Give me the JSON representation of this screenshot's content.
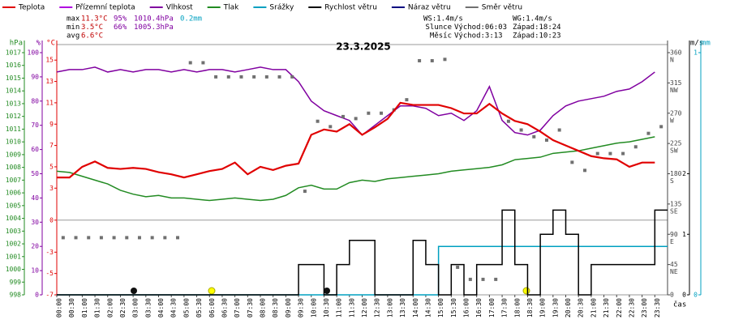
{
  "chart_data": {
    "type": "line",
    "title": "23.3.2025",
    "x_label": "čas",
    "categories": [
      "00:00",
      "00:30",
      "01:00",
      "01:30",
      "02:00",
      "02:30",
      "03:00",
      "03:30",
      "04:00",
      "04:30",
      "05:00",
      "05:30",
      "06:00",
      "06:30",
      "07:00",
      "07:30",
      "08:00",
      "08:30",
      "09:00",
      "09:30",
      "10:00",
      "10:30",
      "11:00",
      "11:30",
      "12:00",
      "12:30",
      "13:00",
      "13:30",
      "14:00",
      "14:30",
      "15:00",
      "15:30",
      "16:00",
      "16:30",
      "17:00",
      "17:30",
      "18:00",
      "18:30",
      "19:00",
      "19:30",
      "20:00",
      "20:30",
      "21:00",
      "21:30",
      "22:00",
      "22:30",
      "23:00",
      "23:30"
    ],
    "axes": {
      "hpa": {
        "label": "hPa",
        "color": "#228b22",
        "lim": [
          998,
          1017
        ],
        "ticks": [
          998,
          999,
          1000,
          1001,
          1002,
          1003,
          1004,
          1005,
          1006,
          1007,
          1008,
          1009,
          1010,
          1011,
          1012,
          1013,
          1014,
          1015,
          1016,
          1017
        ]
      },
      "hum": {
        "label": "%",
        "color": "#8000a0",
        "lim": [
          0,
          100
        ],
        "ticks": [
          0,
          10,
          20,
          30,
          40,
          50,
          60,
          70,
          80,
          90,
          100
        ]
      },
      "temp": {
        "label": "°C",
        "color": "#e00000",
        "lim": [
          -7,
          15.7
        ],
        "ticks": [
          -7,
          -5,
          -3,
          0,
          3,
          5,
          7,
          9,
          11,
          13,
          15
        ]
      },
      "dir": {
        "color": "#444444",
        "lim": [
          0,
          360
        ],
        "ticks": [
          0,
          {
            "value": 45,
            "label": "45",
            "dir": "NE"
          },
          {
            "value": 90,
            "label": "90",
            "dir": "E"
          },
          {
            "value": 135,
            "label": "135",
            "dir": "SE"
          },
          {
            "value": 180,
            "label": "180",
            "dir": "S"
          },
          {
            "value": 225,
            "label": "225",
            "dir": "SW"
          },
          {
            "value": 270,
            "label": "270",
            "dir": "W"
          },
          {
            "value": 315,
            "label": "315",
            "dir": "NW"
          },
          {
            "value": 360,
            "label": "360",
            "dir": "N"
          }
        ]
      },
      "ms": {
        "label": "m/s",
        "color": "#000000",
        "lim": [
          0,
          4
        ],
        "ticks": [
          0,
          1,
          2
        ]
      },
      "mm": {
        "label": "mm",
        "color": "#00a0c0",
        "lim": [
          0,
          1
        ],
        "ticks": [
          0,
          1
        ]
      }
    },
    "zero_line": 0,
    "series": [
      {
        "name": "Teplota",
        "color": "#e00000",
        "axis": "temp",
        "values": [
          4.0,
          4.0,
          5.0,
          5.5,
          4.9,
          4.8,
          4.9,
          4.8,
          4.5,
          4.3,
          4.0,
          4.3,
          4.6,
          4.8,
          5.4,
          4.3,
          5.0,
          4.7,
          5.1,
          5.3,
          8.0,
          8.5,
          8.3,
          9.0,
          8.0,
          8.7,
          9.5,
          11.0,
          10.8,
          10.8,
          10.8,
          10.5,
          10.0,
          10.0,
          10.9,
          10.0,
          9.3,
          9.0,
          8.3,
          7.5,
          7.0,
          6.5,
          6.0,
          5.8,
          5.7,
          5.0,
          5.4,
          5.4
        ]
      },
      {
        "name": "Přízemní teplota",
        "color": "#b000e0"
      },
      {
        "name": "Vlhkost",
        "color": "#8000a0",
        "axis": "hum",
        "values": [
          92,
          93,
          93,
          94,
          92,
          93,
          92,
          93,
          93,
          92,
          93,
          92,
          93,
          93,
          92,
          93,
          94,
          93,
          93,
          88,
          80,
          76,
          74,
          72,
          66,
          70,
          74,
          78,
          78,
          77,
          74,
          75,
          72,
          76,
          86,
          72,
          67,
          66,
          68,
          74,
          78,
          80,
          81,
          82,
          84,
          85,
          88,
          92
        ]
      },
      {
        "name": "Tlak",
        "color": "#228b22",
        "axis": "hpa",
        "values": [
          1007.7,
          1007.6,
          1007.3,
          1007.0,
          1006.7,
          1006.2,
          1005.9,
          1005.7,
          1005.8,
          1005.6,
          1005.6,
          1005.5,
          1005.4,
          1005.5,
          1005.6,
          1005.5,
          1005.4,
          1005.5,
          1005.8,
          1006.4,
          1006.6,
          1006.3,
          1006.3,
          1006.8,
          1007.0,
          1006.9,
          1007.1,
          1007.2,
          1007.3,
          1007.4,
          1007.5,
          1007.7,
          1007.8,
          1007.9,
          1008.0,
          1008.2,
          1008.6,
          1008.7,
          1008.8,
          1009.1,
          1009.2,
          1009.3,
          1009.5,
          1009.7,
          1009.9,
          1010.0,
          1010.2,
          1010.4
        ]
      },
      {
        "name": "Srážky",
        "color": "#00a0c0",
        "axis": "mm",
        "step": true,
        "values": [
          0,
          0,
          0,
          0,
          0,
          0,
          0,
          0,
          0,
          0,
          0,
          0,
          0,
          0,
          0,
          0,
          0,
          0,
          0,
          0,
          0,
          0,
          0,
          0,
          0,
          0,
          0,
          0,
          0,
          0,
          0.2,
          0.2,
          0.2,
          0.2,
          0.2,
          0.2,
          0.2,
          0.2,
          0.2,
          0.2,
          0.2,
          0.2,
          0.2,
          0.2,
          0.2,
          0.2,
          0.2,
          0.2
        ]
      },
      {
        "name": "Rychlost větru",
        "color": "#000000",
        "axis": "ms",
        "step": true,
        "values": [
          0,
          0,
          0,
          0,
          0,
          0,
          0,
          0,
          0,
          0,
          0,
          0,
          0,
          0,
          0,
          0,
          0,
          0,
          0,
          0.5,
          0.5,
          0,
          0.5,
          0.9,
          0.9,
          0,
          0,
          0,
          0.9,
          0.5,
          0,
          0.5,
          0,
          0.5,
          0.5,
          1.4,
          0.5,
          0,
          1.0,
          1.4,
          1.0,
          0,
          0.5,
          0.5,
          0.5,
          0.5,
          0.5,
          1.4
        ]
      },
      {
        "name": "Náraz větru",
        "color": "#000080"
      },
      {
        "name": "Směr větru",
        "color": "#707070",
        "axis": "dir",
        "points": true,
        "values": [
          85,
          85,
          85,
          85,
          85,
          85,
          85,
          85,
          85,
          85,
          345,
          345,
          324,
          324,
          324,
          324,
          324,
          324,
          324,
          154,
          258,
          250,
          265,
          262,
          270,
          270,
          275,
          290,
          348,
          348,
          350,
          41,
          23,
          23,
          23,
          258,
          245,
          235,
          230,
          245,
          197,
          185,
          210,
          210,
          210,
          220,
          240,
          250
        ]
      }
    ],
    "stats": [
      [
        "max",
        "11.3°C",
        "95%",
        "1010.4hPa",
        "0.2mm"
      ],
      [
        "min",
        "3.5°C",
        "66%",
        "1005.3hPa"
      ],
      [
        "avg",
        "6.6°C"
      ]
    ],
    "astro": [
      [
        "",
        "WS:1.4m/s",
        "WG:1.4m/s"
      ],
      [
        "Slunce",
        "Východ:06:03",
        "Západ:18:24"
      ],
      [
        "Měsíc",
        "Východ:3:13",
        "Západ:10:23"
      ]
    ]
  }
}
